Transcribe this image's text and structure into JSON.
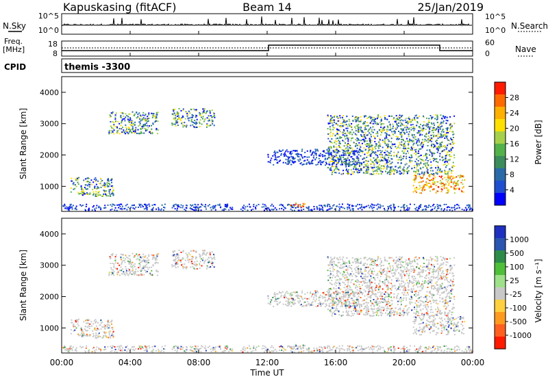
{
  "header": {
    "station": "Kapuskasing (fitACF)",
    "beam": "Beam 14",
    "date": "25/Jan/2019"
  },
  "top_panels": {
    "nsky_label": "N.Sky",
    "nsky_tick_top": "10^5",
    "nsky_tick_bottom": "10^0",
    "nsearch_label": "N.Search",
    "nsearch_tick_top": "10^5",
    "nsearch_tick_bottom": "10^0",
    "freq_label": "Freq.",
    "freq_unit": "[MHz]",
    "freq_tick_top": "18",
    "freq_tick_bottom": "8",
    "nave_label": "Nave",
    "nave_tick_top": "60",
    "nave_tick_bottom": "0",
    "cpid_label": "CPID",
    "cpid_value": "themis -3300"
  },
  "chart_data": [
    {
      "type": "heatmap",
      "name": "power",
      "ylabel": "Slant Range [km]",
      "colorbar_label": "Power [dB]",
      "colorbar_ticks": [
        "4",
        "8",
        "12",
        "16",
        "20",
        "24",
        "28"
      ],
      "colorbar_colors": [
        "#0000ff",
        "#1f4fd0",
        "#2a6aa8",
        "#3c8c5c",
        "#54b24a",
        "#a7d04a",
        "#ffe000",
        "#ffb000",
        "#ff6a00",
        "#ff1a00"
      ],
      "xlabel": "Time UT",
      "xticks": [
        "00:00",
        "04:00",
        "08:00",
        "12:00",
        "16:00",
        "20:00",
        "00:00"
      ],
      "yticks": [
        "1000",
        "2000",
        "3000",
        "4000"
      ],
      "ylim": [
        200,
        4500
      ],
      "xlim_hours": [
        0,
        24
      ],
      "scatter_regions": [
        {
          "t": [
            2.7,
            5.6
          ],
          "r": [
            2700,
            3400
          ],
          "level": "mixed"
        },
        {
          "t": [
            6.4,
            8.9
          ],
          "r": [
            2900,
            3500
          ],
          "level": "mixed"
        },
        {
          "t": [
            0.5,
            3.0
          ],
          "r": [
            700,
            1300
          ],
          "level": "mixed"
        },
        {
          "t": [
            12.0,
            17.5
          ],
          "r": [
            1700,
            2200
          ],
          "level": "low"
        },
        {
          "t": [
            15.5,
            22.9
          ],
          "r": [
            1400,
            3300
          ],
          "level": "mixed"
        },
        {
          "t": [
            20.5,
            23.5
          ],
          "r": [
            800,
            1400
          ],
          "level": "high"
        },
        {
          "t": [
            0.0,
            24.0
          ],
          "r": [
            250,
            450
          ],
          "level": "low"
        },
        {
          "t": [
            13.2,
            14.2
          ],
          "r": [
            350,
            500
          ],
          "level": "high"
        }
      ]
    },
    {
      "type": "heatmap",
      "name": "velocity",
      "ylabel": "Slant Range [km]",
      "colorbar_label": "Velocity [m s⁻¹]",
      "colorbar_ticks": [
        "1000",
        "500",
        "100",
        "25",
        "-25",
        "-100",
        "-500",
        "-1000"
      ],
      "colorbar_colors": [
        "#1f30c0",
        "#2a55b0",
        "#2e8c4a",
        "#4fbf3a",
        "#9fe08a",
        "#c8c8c8",
        "#ffd040",
        "#ff9a20",
        "#ff6020",
        "#ff1a00"
      ],
      "xlabel": "Time UT",
      "xticks": [
        "00:00",
        "04:00",
        "08:00",
        "12:00",
        "16:00",
        "20:00",
        "00:00"
      ],
      "yticks": [
        "1000",
        "2000",
        "3000",
        "4000"
      ],
      "ylim": [
        200,
        4500
      ],
      "xlim_hours": [
        0,
        24
      ]
    }
  ]
}
